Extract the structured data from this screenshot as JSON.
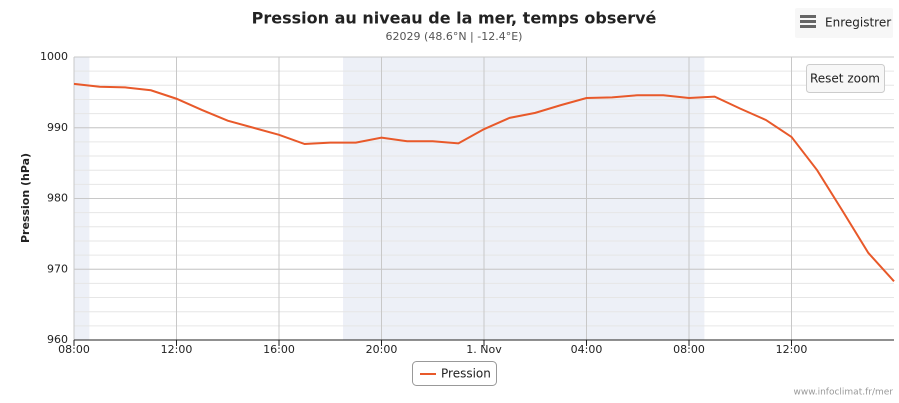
{
  "chart_data": {
    "type": "line",
    "title": "Pression au niveau de la mer, temps observé",
    "subtitle": "62029 (48.6°N | -12.4°E)",
    "y_label": "Pression (hPa)",
    "credit": "www.infoclimat.fr/mer",
    "buttons": {
      "export": "Enregistrer",
      "reset": "Reset zoom"
    },
    "x": [
      0,
      1,
      2,
      3,
      4,
      5,
      6,
      7,
      8,
      9,
      10,
      11,
      12,
      13,
      14,
      15,
      16,
      17,
      18,
      19,
      20,
      21,
      22,
      23,
      24,
      25,
      26,
      27,
      28,
      29,
      30,
      31,
      32
    ],
    "series": [
      {
        "name": "Pression",
        "color": "#e8592a",
        "values": [
          996.2,
          995.8,
          995.7,
          995.3,
          994.1,
          992.5,
          991.0,
          990.0,
          989.0,
          987.7,
          987.9,
          987.9,
          988.6,
          988.1,
          988.1,
          987.8,
          989.8,
          991.4,
          992.1,
          993.2,
          994.2,
          994.3,
          994.6,
          994.6,
          994.2,
          994.4,
          992.7,
          991.1,
          988.7,
          984.0,
          978.2,
          972.3,
          968.3
        ]
      }
    ],
    "xlim": [
      0,
      32
    ],
    "xticks": [
      {
        "value": 0,
        "label": "08:00"
      },
      {
        "value": 4,
        "label": "12:00"
      },
      {
        "value": 8,
        "label": "16:00"
      },
      {
        "value": 12,
        "label": "20:00"
      },
      {
        "value": 16,
        "label": "1. Nov"
      },
      {
        "value": 20,
        "label": "04:00"
      },
      {
        "value": 24,
        "label": "08:00"
      },
      {
        "value": 28,
        "label": "12:00"
      }
    ],
    "ylim": [
      960,
      1000
    ],
    "yticks": [
      960,
      970,
      980,
      990,
      1000
    ],
    "minor_grid_step": 2,
    "bands": [
      [
        0,
        0.6
      ],
      [
        10.5,
        24.6
      ]
    ],
    "band_color": "#edf0f7",
    "grid": true
  }
}
